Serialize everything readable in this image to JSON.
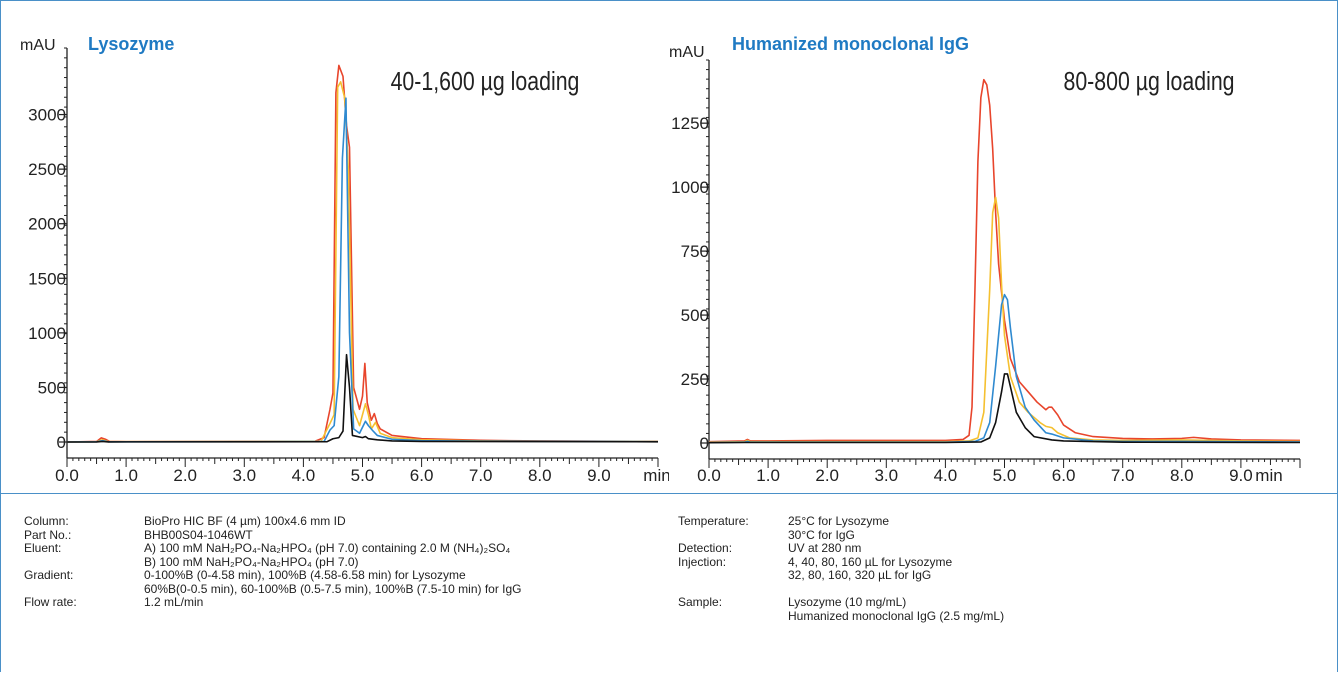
{
  "chart_data": [
    {
      "type": "line",
      "title": "Lysozyme",
      "annotation": "40-1,600 µg loading",
      "ylabel": "mAU",
      "xlabel": "min",
      "xlim": [
        0,
        10
      ],
      "ylim": [
        -50,
        3500
      ],
      "xticks": [
        "0.0",
        "1.0",
        "2.0",
        "3.0",
        "4.0",
        "5.0",
        "6.0",
        "7.0",
        "8.0",
        "9.0"
      ],
      "yticks": [
        "0",
        "500",
        "1000",
        "1500",
        "2000",
        "2500",
        "3000"
      ],
      "series": [
        {
          "color": "#e8452c",
          "points": [
            [
              0,
              0
            ],
            [
              0.5,
              5
            ],
            [
              0.58,
              38
            ],
            [
              0.65,
              25
            ],
            [
              0.72,
              5
            ],
            [
              1.0,
              3
            ],
            [
              3,
              5
            ],
            [
              4.2,
              8
            ],
            [
              4.35,
              40
            ],
            [
              4.45,
              300
            ],
            [
              4.5,
              450
            ],
            [
              4.55,
              3200
            ],
            [
              4.6,
              3450
            ],
            [
              4.67,
              3350
            ],
            [
              4.73,
              2900
            ],
            [
              4.78,
              2700
            ],
            [
              4.85,
              500
            ],
            [
              4.95,
              300
            ],
            [
              5.0,
              420
            ],
            [
              5.04,
              720
            ],
            [
              5.08,
              360
            ],
            [
              5.15,
              200
            ],
            [
              5.2,
              260
            ],
            [
              5.25,
              170
            ],
            [
              5.3,
              120
            ],
            [
              5.5,
              60
            ],
            [
              6.0,
              30
            ],
            [
              7,
              15
            ],
            [
              8,
              10
            ],
            [
              9,
              8
            ],
            [
              10,
              5
            ]
          ]
        },
        {
          "color": "#f5c030",
          "points": [
            [
              0,
              0
            ],
            [
              0.5,
              3
            ],
            [
              0.6,
              20
            ],
            [
              0.7,
              3
            ],
            [
              3,
              4
            ],
            [
              4.3,
              8
            ],
            [
              4.45,
              170
            ],
            [
              4.52,
              250
            ],
            [
              4.58,
              3250
            ],
            [
              4.63,
              3300
            ],
            [
              4.7,
              3150
            ],
            [
              4.76,
              2500
            ],
            [
              4.84,
              300
            ],
            [
              4.95,
              150
            ],
            [
              5.05,
              350
            ],
            [
              5.1,
              250
            ],
            [
              5.15,
              120
            ],
            [
              5.22,
              180
            ],
            [
              5.3,
              80
            ],
            [
              5.5,
              40
            ],
            [
              6,
              20
            ],
            [
              7,
              10
            ],
            [
              10,
              4
            ]
          ]
        },
        {
          "color": "#2f8ad0",
          "points": [
            [
              0,
              0
            ],
            [
              0.5,
              2
            ],
            [
              0.6,
              12
            ],
            [
              0.7,
              2
            ],
            [
              3,
              3
            ],
            [
              4.35,
              5
            ],
            [
              4.45,
              110
            ],
            [
              4.52,
              150
            ],
            [
              4.6,
              600
            ],
            [
              4.66,
              2600
            ],
            [
              4.72,
              3150
            ],
            [
              4.78,
              1000
            ],
            [
              4.85,
              120
            ],
            [
              4.95,
              80
            ],
            [
              5.05,
              190
            ],
            [
              5.1,
              150
            ],
            [
              5.18,
              100
            ],
            [
              5.25,
              60
            ],
            [
              5.5,
              25
            ],
            [
              6,
              12
            ],
            [
              7,
              8
            ],
            [
              10,
              3
            ]
          ]
        },
        {
          "color": "#111111",
          "points": [
            [
              0,
              0
            ],
            [
              0.5,
              1
            ],
            [
              0.6,
              5
            ],
            [
              0.7,
              1
            ],
            [
              3,
              2
            ],
            [
              4.4,
              3
            ],
            [
              4.5,
              30
            ],
            [
              4.6,
              40
            ],
            [
              4.67,
              100
            ],
            [
              4.73,
              800
            ],
            [
              4.78,
              500
            ],
            [
              4.83,
              60
            ],
            [
              5.0,
              40
            ],
            [
              5.05,
              50
            ],
            [
              5.1,
              30
            ],
            [
              5.25,
              20
            ],
            [
              5.5,
              10
            ],
            [
              6,
              5
            ],
            [
              10,
              2
            ]
          ]
        }
      ]
    },
    {
      "type": "line",
      "title": "Humanized monoclonal IgG",
      "annotation": "80-800 µg loading",
      "ylabel": "mAU",
      "xlabel": "min",
      "xlim": [
        0,
        10
      ],
      "ylim": [
        -20,
        1450
      ],
      "xticks": [
        "0.0",
        "1.0",
        "2.0",
        "3.0",
        "4.0",
        "5.0",
        "6.0",
        "7.0",
        "8.0",
        "9.0"
      ],
      "yticks": [
        "0",
        "250",
        "500",
        "750",
        "1000",
        "1250"
      ],
      "series": [
        {
          "color": "#e8452c",
          "points": [
            [
              0,
              5
            ],
            [
              0.6,
              8
            ],
            [
              0.65,
              14
            ],
            [
              0.7,
              8
            ],
            [
              1,
              8
            ],
            [
              2,
              10
            ],
            [
              3,
              10
            ],
            [
              4,
              10
            ],
            [
              4.3,
              14
            ],
            [
              4.4,
              30
            ],
            [
              4.45,
              140
            ],
            [
              4.5,
              600
            ],
            [
              4.55,
              1100
            ],
            [
              4.6,
              1350
            ],
            [
              4.65,
              1420
            ],
            [
              4.7,
              1400
            ],
            [
              4.75,
              1320
            ],
            [
              4.8,
              1150
            ],
            [
              4.85,
              900
            ],
            [
              4.9,
              700
            ],
            [
              5.0,
              480
            ],
            [
              5.1,
              330
            ],
            [
              5.25,
              240
            ],
            [
              5.4,
              200
            ],
            [
              5.55,
              160
            ],
            [
              5.7,
              130
            ],
            [
              5.75,
              140
            ],
            [
              5.8,
              140
            ],
            [
              5.9,
              110
            ],
            [
              6.0,
              70
            ],
            [
              6.2,
              40
            ],
            [
              6.5,
              25
            ],
            [
              7,
              18
            ],
            [
              7.5,
              16
            ],
            [
              8,
              18
            ],
            [
              8.2,
              22
            ],
            [
              8.5,
              16
            ],
            [
              9,
              12
            ],
            [
              10,
              10
            ]
          ]
        },
        {
          "color": "#f5c030",
          "points": [
            [
              0,
              3
            ],
            [
              0.6,
              5
            ],
            [
              0.65,
              10
            ],
            [
              0.7,
              5
            ],
            [
              2,
              5
            ],
            [
              4,
              5
            ],
            [
              4.4,
              8
            ],
            [
              4.55,
              20
            ],
            [
              4.65,
              120
            ],
            [
              4.75,
              600
            ],
            [
              4.8,
              900
            ],
            [
              4.85,
              960
            ],
            [
              4.9,
              880
            ],
            [
              4.95,
              620
            ],
            [
              5.0,
              420
            ],
            [
              5.1,
              260
            ],
            [
              5.25,
              160
            ],
            [
              5.4,
              120
            ],
            [
              5.6,
              80
            ],
            [
              5.7,
              65
            ],
            [
              5.8,
              60
            ],
            [
              5.9,
              40
            ],
            [
              6.1,
              20
            ],
            [
              6.5,
              12
            ],
            [
              7,
              10
            ],
            [
              8,
              12
            ],
            [
              9,
              8
            ],
            [
              10,
              6
            ]
          ]
        },
        {
          "color": "#2f8ad0",
          "points": [
            [
              0,
              2
            ],
            [
              0.6,
              3
            ],
            [
              0.65,
              6
            ],
            [
              0.7,
              3
            ],
            [
              4,
              3
            ],
            [
              4.5,
              6
            ],
            [
              4.65,
              20
            ],
            [
              4.75,
              80
            ],
            [
              4.85,
              300
            ],
            [
              4.95,
              540
            ],
            [
              5.0,
              580
            ],
            [
              5.05,
              560
            ],
            [
              5.1,
              450
            ],
            [
              5.2,
              260
            ],
            [
              5.35,
              140
            ],
            [
              5.5,
              90
            ],
            [
              5.7,
              40
            ],
            [
              5.8,
              35
            ],
            [
              6,
              20
            ],
            [
              6.5,
              8
            ],
            [
              7,
              6
            ],
            [
              8,
              6
            ],
            [
              10,
              4
            ]
          ]
        },
        {
          "color": "#111111",
          "points": [
            [
              0,
              1
            ],
            [
              0.6,
              2
            ],
            [
              4,
              2
            ],
            [
              4.6,
              4
            ],
            [
              4.75,
              20
            ],
            [
              4.85,
              80
            ],
            [
              4.95,
              200
            ],
            [
              5.0,
              270
            ],
            [
              5.05,
              270
            ],
            [
              5.1,
              220
            ],
            [
              5.2,
              120
            ],
            [
              5.35,
              60
            ],
            [
              5.5,
              25
            ],
            [
              5.8,
              12
            ],
            [
              6,
              8
            ],
            [
              7,
              3
            ],
            [
              10,
              2
            ]
          ]
        }
      ]
    }
  ],
  "info": {
    "left": [
      {
        "key": "Column:",
        "lines": [
          "BioPro HIC BF (4 µm) 100x4.6 mm ID"
        ]
      },
      {
        "key": "Part No.:",
        "lines": [
          "BHB00S04-1046WT"
        ]
      },
      {
        "key": "Eluent:",
        "lines": [
          "A) 100 mM NaH₂PO₄-Na₂HPO₄ (pH 7.0) containing 2.0 M (NH₄)₂SO₄",
          "B) 100 mM NaH₂PO₄-Na₂HPO₄ (pH 7.0)"
        ]
      },
      {
        "key": "Gradient:",
        "lines": [
          "0-100%B (0-4.58 min), 100%B (4.58-6.58 min) for Lysozyme",
          "60%B(0-0.5 min), 60-100%B (0.5-7.5 min), 100%B (7.5-10 min) for IgG"
        ]
      },
      {
        "key": "Flow rate:",
        "lines": [
          "1.2 mL/min"
        ]
      }
    ],
    "right": [
      {
        "key": "Temperature:",
        "lines": [
          "25°C for Lysozyme",
          "30°C for IgG"
        ]
      },
      {
        "key": "Detection:",
        "lines": [
          "UV at 280 nm"
        ]
      },
      {
        "key": "Injection:",
        "lines": [
          "4, 40, 80, 160 µL for Lysozyme",
          "32, 80, 160, 320 µL for IgG"
        ]
      },
      {
        "key": "",
        "lines": [
          ""
        ]
      },
      {
        "key": "Sample:",
        "lines": [
          "Lysozyme (10 mg/mL)",
          "Humanized monoclonal IgG (2.5 mg/mL)"
        ]
      }
    ]
  },
  "colors": {
    "frame": "#4a90c8",
    "title": "#1f7ac3"
  }
}
